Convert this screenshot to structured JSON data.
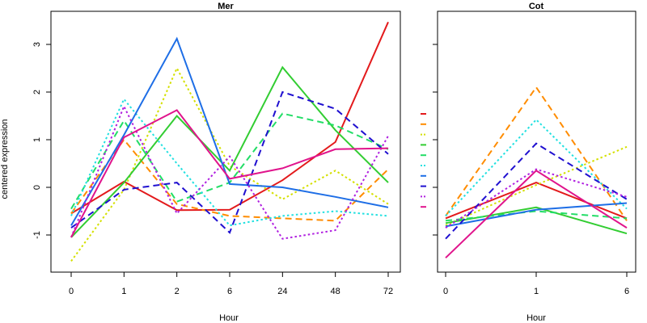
{
  "chart_data": [
    {
      "type": "line",
      "title": "Mer",
      "xlabel": "Hour",
      "ylabel": "centered expression",
      "categories": [
        "0",
        "1",
        "2",
        "6",
        "24",
        "48",
        "72"
      ],
      "ylim": [
        -1.75,
        3.5
      ],
      "yticks": [
        -1,
        0,
        1,
        2,
        3
      ],
      "series": [
        {
          "color": "#e31a1c",
          "dash": "solid",
          "values": [
            -0.55,
            0.12,
            -0.48,
            -0.47,
            0.15,
            0.95,
            3.47
          ]
        },
        {
          "color": "#ff8c00",
          "dash": "dashed",
          "values": [
            -0.55,
            1.0,
            -0.35,
            -0.6,
            -0.65,
            -0.7,
            0.38
          ]
        },
        {
          "color": "#d4e000",
          "dash": "dotted",
          "values": [
            -1.55,
            -0.05,
            2.5,
            0.45,
            -0.25,
            0.35,
            -0.35
          ]
        },
        {
          "color": "#32cd32",
          "dash": "solid",
          "values": [
            -1.05,
            0.1,
            1.5,
            0.35,
            2.52,
            1.2,
            0.1
          ]
        },
        {
          "color": "#22dd66",
          "dash": "dashed",
          "values": [
            -0.45,
            1.4,
            -0.3,
            0.1,
            1.55,
            1.3,
            0.8
          ]
        },
        {
          "color": "#22e0e0",
          "dash": "dotted",
          "values": [
            -0.6,
            1.85,
            0.5,
            -0.8,
            -0.6,
            -0.5,
            -0.6
          ]
        },
        {
          "color": "#1e6ee6",
          "dash": "solid",
          "values": [
            -0.8,
            1.1,
            3.12,
            0.07,
            0.0,
            -0.2,
            -0.42
          ]
        },
        {
          "color": "#2010d0",
          "dash": "dashed",
          "values": [
            -0.85,
            -0.05,
            0.1,
            -0.95,
            2.0,
            1.65,
            0.7
          ]
        },
        {
          "color": "#b020e0",
          "dash": "dotted",
          "values": [
            -1.05,
            1.7,
            -0.55,
            0.65,
            -1.08,
            -0.9,
            1.08
          ]
        },
        {
          "color": "#e0148c",
          "dash": "solid",
          "values": [
            -1.05,
            1.05,
            1.62,
            0.18,
            0.4,
            0.8,
            0.82
          ]
        }
      ]
    },
    {
      "type": "line",
      "title": "Cot",
      "xlabel": "Hour",
      "ylabel": "",
      "categories": [
        "0",
        "1",
        "6"
      ],
      "ylim": [
        -1.75,
        3.5
      ],
      "yticks": [
        -1,
        0,
        1,
        2,
        3
      ],
      "series": [
        {
          "color": "#e31a1c",
          "dash": "solid",
          "values": [
            -0.65,
            0.1,
            -0.65
          ]
        },
        {
          "color": "#ff8c00",
          "dash": "dashed",
          "values": [
            -0.6,
            2.1,
            -0.7
          ]
        },
        {
          "color": "#d4e000",
          "dash": "dotted",
          "values": [
            -0.8,
            0.05,
            0.85
          ]
        },
        {
          "color": "#32cd32",
          "dash": "solid",
          "values": [
            -0.75,
            -0.42,
            -0.97
          ]
        },
        {
          "color": "#22dd66",
          "dash": "dashed",
          "values": [
            -0.7,
            -0.5,
            -0.65
          ]
        },
        {
          "color": "#22e0e0",
          "dash": "dotted",
          "values": [
            -0.6,
            1.42,
            -0.45
          ]
        },
        {
          "color": "#1e6ee6",
          "dash": "solid",
          "values": [
            -0.82,
            -0.47,
            -0.33
          ]
        },
        {
          "color": "#2010d0",
          "dash": "dashed",
          "values": [
            -1.08,
            0.92,
            -0.25
          ]
        },
        {
          "color": "#b020e0",
          "dash": "dotted",
          "values": [
            -0.85,
            0.38,
            -0.2
          ]
        },
        {
          "color": "#e0148c",
          "dash": "solid",
          "values": [
            -1.48,
            0.35,
            -0.85
          ]
        }
      ]
    }
  ]
}
